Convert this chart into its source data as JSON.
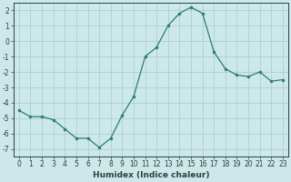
{
  "x": [
    0,
    1,
    2,
    3,
    4,
    5,
    6,
    7,
    8,
    9,
    10,
    11,
    12,
    13,
    14,
    15,
    16,
    17,
    18,
    19,
    20,
    21,
    22,
    23
  ],
  "y": [
    -4.5,
    -4.9,
    -4.9,
    -5.1,
    -5.7,
    -6.3,
    -6.3,
    -6.9,
    -6.3,
    -4.8,
    -3.6,
    -1.0,
    -0.4,
    1.0,
    1.8,
    2.2,
    1.8,
    -0.7,
    -1.8,
    -2.2,
    -2.3,
    -2.0,
    -2.6,
    -2.5
  ],
  "line_color": "#2e7d6e",
  "marker_color": "#2e7d6e",
  "bg_color": "#cce8e8",
  "grid_color": "#a8cccc",
  "xlabel": "Humidex (Indice chaleur)",
  "xlim": [
    -0.5,
    23.5
  ],
  "ylim": [
    -7.5,
    2.5
  ],
  "yticks": [
    -7,
    -6,
    -5,
    -4,
    -3,
    -2,
    -1,
    0,
    1,
    2
  ],
  "xticks": [
    0,
    1,
    2,
    3,
    4,
    5,
    6,
    7,
    8,
    9,
    10,
    11,
    12,
    13,
    14,
    15,
    16,
    17,
    18,
    19,
    20,
    21,
    22,
    23
  ],
  "font_color": "#2e4040",
  "tick_fontsize": 5.5,
  "xlabel_fontsize": 6.5,
  "marker_size": 2.0,
  "line_width": 0.9
}
